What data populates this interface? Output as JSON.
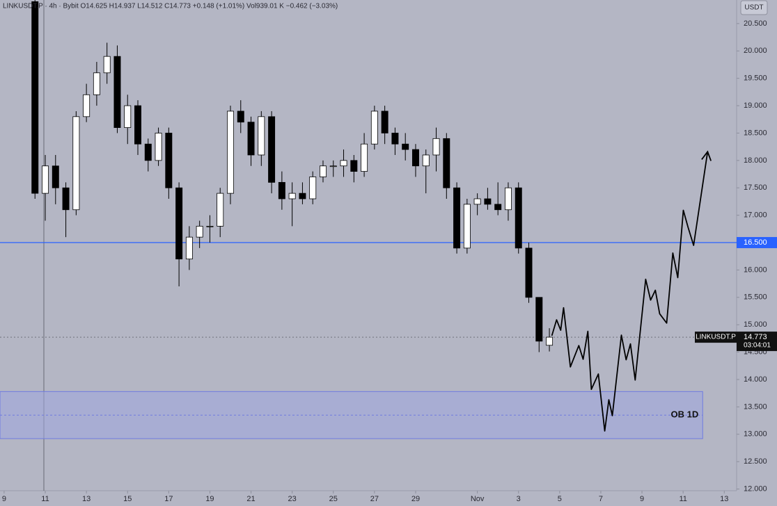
{
  "chart_data": {
    "type": "candlestick",
    "legend_text": "LINKUSDT.P · 4h · Bybit  O14.625 H14.937 L14.512 C14.773 +0.148 (+1.01%)  Vol939.01 K −0.462 (−3.03%)",
    "currency": "USDT",
    "x": [
      10.5,
      11,
      11.5,
      12,
      12.5,
      13,
      13.5,
      14,
      14.5,
      15,
      15.5,
      16,
      16.5,
      17,
      17.5,
      18,
      18.5,
      19,
      19.5,
      20,
      20.5,
      21,
      21.5,
      22,
      22.5,
      23,
      23.5,
      24,
      24.5,
      25,
      25.5,
      26,
      26.5,
      27,
      27.5,
      28,
      28.5,
      29,
      29.5,
      30,
      30.5,
      31,
      31.5,
      32,
      32.5,
      33,
      33.5,
      34,
      34.5,
      35,
      35.5
    ],
    "open": [
      20.9,
      17.4,
      17.9,
      17.5,
      17.1,
      18.8,
      19.2,
      19.6,
      19.9,
      18.6,
      19.0,
      18.3,
      18.0,
      18.5,
      17.5,
      16.2,
      16.6,
      16.8,
      16.8,
      17.4,
      18.9,
      18.7,
      18.1,
      18.8,
      17.6,
      17.3,
      17.4,
      17.3,
      17.7,
      17.9,
      17.9,
      18.0,
      17.8,
      18.3,
      18.9,
      18.5,
      18.3,
      18.2,
      17.9,
      18.1,
      18.4,
      17.5,
      16.4,
      17.2,
      17.3,
      17.2,
      17.1,
      17.5,
      16.4,
      15.5,
      14.625
    ],
    "high": [
      20.95,
      18.1,
      18.1,
      17.6,
      18.9,
      19.4,
      19.8,
      20.15,
      20.1,
      19.2,
      19.1,
      18.4,
      18.6,
      18.6,
      17.6,
      16.8,
      16.9,
      17.0,
      17.5,
      19.0,
      19.1,
      18.8,
      18.9,
      18.9,
      17.8,
      17.6,
      17.6,
      17.8,
      18.0,
      18.0,
      18.2,
      18.1,
      18.5,
      19.0,
      19.0,
      18.6,
      18.5,
      18.3,
      18.2,
      18.6,
      18.5,
      17.6,
      17.3,
      17.4,
      17.5,
      17.6,
      17.6,
      17.6,
      16.5,
      15.5,
      14.937
    ],
    "low": [
      17.3,
      16.9,
      17.2,
      16.6,
      17.0,
      18.7,
      19.0,
      19.4,
      18.5,
      18.3,
      18.1,
      17.8,
      17.9,
      17.3,
      15.7,
      16.0,
      16.4,
      16.5,
      16.6,
      17.2,
      18.5,
      17.9,
      17.9,
      17.4,
      17.1,
      16.8,
      17.2,
      17.2,
      17.6,
      17.7,
      17.7,
      17.6,
      17.7,
      18.2,
      18.3,
      18.1,
      18.0,
      17.7,
      17.4,
      17.8,
      17.3,
      16.3,
      16.3,
      17.0,
      17.1,
      17.0,
      16.9,
      16.3,
      15.4,
      14.5,
      14.512
    ],
    "close": [
      17.4,
      17.9,
      17.5,
      17.1,
      18.8,
      19.2,
      19.6,
      19.9,
      18.6,
      19.0,
      18.3,
      18.0,
      18.5,
      17.5,
      16.2,
      16.6,
      16.8,
      16.8,
      17.4,
      18.9,
      18.7,
      18.1,
      18.8,
      17.6,
      17.3,
      17.4,
      17.3,
      17.7,
      17.9,
      17.9,
      18.0,
      17.8,
      18.3,
      18.9,
      18.5,
      18.3,
      18.2,
      17.9,
      18.1,
      18.4,
      17.5,
      16.4,
      17.2,
      17.3,
      17.2,
      17.1,
      17.5,
      16.4,
      15.5,
      14.7,
      14.773
    ],
    "up_color": "#ffffff",
    "down_color": "#000000",
    "projection": {
      "color": "#000000",
      "x": [
        35.62,
        35.85,
        36.05,
        36.19,
        36.52,
        36.93,
        37.14,
        37.37,
        37.54,
        37.88,
        38.19,
        38.39,
        38.56,
        39.0,
        39.23,
        39.44,
        39.67,
        40.18,
        40.42,
        40.65,
        40.86,
        41.2,
        41.5,
        41.74,
        42.01,
        42.24,
        42.51,
        43.19
      ],
      "y": [
        14.8,
        15.09,
        14.9,
        15.31,
        14.23,
        14.62,
        14.37,
        14.88,
        13.82,
        14.1,
        13.06,
        13.63,
        13.34,
        14.81,
        14.36,
        14.65,
        13.99,
        15.83,
        15.45,
        15.63,
        15.2,
        15.03,
        16.31,
        15.86,
        17.09,
        16.78,
        16.45,
        18.16
      ]
    },
    "hlines": [
      {
        "value": 16.5,
        "label": "16.500",
        "color": "#2962ff"
      }
    ],
    "last_price": {
      "value": 14.773,
      "label": "14.773",
      "symbol": "LINKUSDT.P",
      "countdown": "03:04:01"
    },
    "zones": [
      {
        "label": "OB 1D",
        "ylim": [
          12.92,
          13.78
        ],
        "xlim": [
          8.8,
          42.95
        ],
        "color": "#9ea6e0"
      }
    ],
    "xlim": [
      8.8,
      44.6
    ],
    "ylim": [
      11.69,
      20.93
    ],
    "xticks": [
      9,
      11,
      13,
      15,
      17,
      19,
      21,
      23,
      25,
      27,
      29,
      {
        "value": 32,
        "label": "Nov"
      },
      {
        "value": 34,
        "label": "3"
      },
      {
        "value": 36,
        "label": "5"
      },
      {
        "value": 38,
        "label": "7"
      },
      {
        "value": 40,
        "label": "9"
      },
      {
        "value": 42,
        "label": "11"
      },
      {
        "value": 44,
        "label": "13"
      }
    ],
    "yticks": [
      {
        "value": 12,
        "label": "12.000"
      },
      {
        "value": 12.5,
        "label": "12.500"
      },
      {
        "value": 13,
        "label": "13.000"
      },
      {
        "value": 13.5,
        "label": "13.500"
      },
      {
        "value": 14,
        "label": "14.000"
      },
      {
        "value": 14.5,
        "label": "14.500"
      },
      {
        "value": 15,
        "label": "15.000"
      },
      {
        "value": 15.5,
        "label": "15.500"
      },
      {
        "value": 16,
        "label": "16.000"
      },
      {
        "value": 16.5,
        "label": "16.500"
      },
      {
        "value": 17,
        "label": "17.000"
      },
      {
        "value": 17.5,
        "label": "17.500"
      },
      {
        "value": 18,
        "label": "18.000"
      },
      {
        "value": 18.5,
        "label": "18.500"
      },
      {
        "value": 19,
        "label": "19.000"
      },
      {
        "value": 19.5,
        "label": "19.500"
      },
      {
        "value": 20,
        "label": "20.000"
      },
      {
        "value": 20.5,
        "label": "20.500"
      }
    ]
  }
}
